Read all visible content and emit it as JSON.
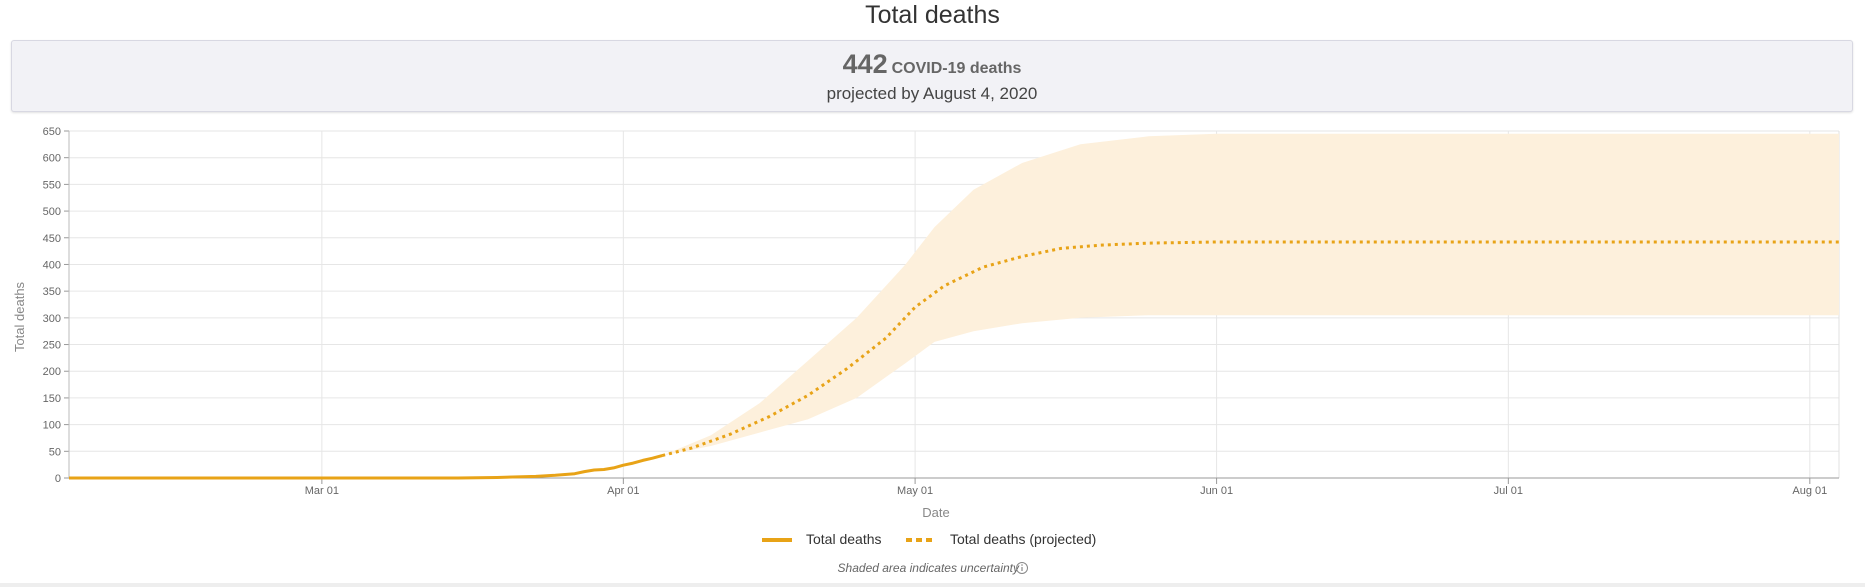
{
  "title": "Total deaths",
  "summary": {
    "value": "442",
    "unit": "COVID-19 deaths",
    "subtitle": "projected by August 4, 2020"
  },
  "colors": {
    "line": "#e8a317",
    "band": "#fdf0dc",
    "grid": "#e6e6e6",
    "axis_text": "#666666"
  },
  "chart_data": {
    "type": "line",
    "xlabel": "Date",
    "ylabel": "Total deaths",
    "xlim": [
      "2020-02-04",
      "2020-08-04"
    ],
    "ylim": [
      0,
      650
    ],
    "y_ticks": [
      0,
      50,
      100,
      150,
      200,
      250,
      300,
      350,
      400,
      450,
      500,
      550,
      600,
      650
    ],
    "x_ticks": [
      {
        "date": "2020-03-01",
        "label": "Mar 01"
      },
      {
        "date": "2020-04-01",
        "label": "Apr 01"
      },
      {
        "date": "2020-05-01",
        "label": "May 01"
      },
      {
        "date": "2020-06-01",
        "label": "Jun 01"
      },
      {
        "date": "2020-07-01",
        "label": "Jul 01"
      },
      {
        "date": "2020-08-01",
        "label": "Aug 01"
      }
    ],
    "grid": true,
    "legend_position": "bottom-center",
    "series": [
      {
        "name": "Total deaths",
        "style": "solid",
        "points": [
          [
            "2020-02-04",
            0
          ],
          [
            "2020-03-01",
            0
          ],
          [
            "2020-03-15",
            0
          ],
          [
            "2020-03-19",
            1
          ],
          [
            "2020-03-23",
            3
          ],
          [
            "2020-03-25",
            5
          ],
          [
            "2020-03-27",
            8
          ],
          [
            "2020-03-28",
            12
          ],
          [
            "2020-03-29",
            15
          ],
          [
            "2020-03-30",
            16
          ],
          [
            "2020-03-31",
            19
          ],
          [
            "2020-04-01",
            24
          ],
          [
            "2020-04-02",
            28
          ],
          [
            "2020-04-03",
            33
          ],
          [
            "2020-04-04",
            37
          ],
          [
            "2020-04-05",
            42
          ]
        ]
      },
      {
        "name": "Total deaths (projected)",
        "style": "dotted",
        "points": [
          [
            "2020-04-05",
            42
          ],
          [
            "2020-04-08",
            56
          ],
          [
            "2020-04-12",
            82
          ],
          [
            "2020-04-16",
            115
          ],
          [
            "2020-04-20",
            155
          ],
          [
            "2020-04-24",
            205
          ],
          [
            "2020-04-28",
            262
          ],
          [
            "2020-05-01",
            320
          ],
          [
            "2020-05-04",
            360
          ],
          [
            "2020-05-08",
            395
          ],
          [
            "2020-05-12",
            415
          ],
          [
            "2020-05-16",
            430
          ],
          [
            "2020-05-20",
            436
          ],
          [
            "2020-05-25",
            440
          ],
          [
            "2020-06-01",
            442
          ],
          [
            "2020-07-01",
            442
          ],
          [
            "2020-08-04",
            442
          ]
        ]
      }
    ],
    "uncertainty_band": {
      "points": [
        [
          "2020-04-05",
          42,
          42
        ],
        [
          "2020-04-10",
          60,
          80
        ],
        [
          "2020-04-15",
          85,
          140
        ],
        [
          "2020-04-20",
          110,
          220
        ],
        [
          "2020-04-25",
          150,
          300
        ],
        [
          "2020-04-30",
          215,
          400
        ],
        [
          "2020-05-03",
          255,
          470
        ],
        [
          "2020-05-07",
          275,
          540
        ],
        [
          "2020-05-12",
          290,
          590
        ],
        [
          "2020-05-18",
          300,
          625
        ],
        [
          "2020-05-25",
          305,
          640
        ],
        [
          "2020-06-01",
          305,
          645
        ],
        [
          "2020-07-01",
          305,
          645
        ],
        [
          "2020-08-04",
          305,
          645
        ]
      ]
    },
    "footnote": "Shaded area indicates uncertainty",
    "footnote_icon": "info-icon"
  }
}
